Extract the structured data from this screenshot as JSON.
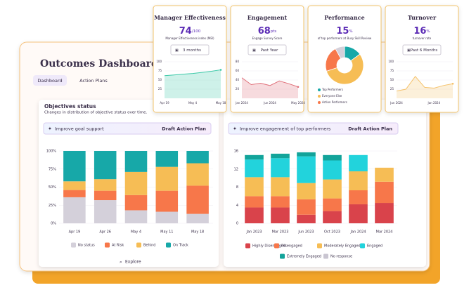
{
  "dashboard": {
    "title": "Outcomes Dashboard",
    "tabs": [
      "Dashboard",
      "Action Plans"
    ]
  },
  "panels": [
    {
      "title": "Objectives status",
      "subtitle": "Changes in distribution of objective status over time.",
      "banner": "Improve goal support",
      "action": "Draft Action Plan",
      "footer": "Explore",
      "chart": {
        "type": "stacked_bar",
        "categories": [
          "Apr 19",
          "Apr 26",
          "May 4",
          "May 11",
          "May 18"
        ],
        "series": [
          {
            "name": "No status",
            "color": "#d4d0da",
            "values": [
              36,
              32,
              18,
              16,
              13
            ]
          },
          {
            "name": "At Risk",
            "color": "#f7774a",
            "values": [
              10,
              13,
              21,
              29,
              39
            ]
          },
          {
            "name": "Behind",
            "color": "#f6bd55",
            "values": [
              12,
              16,
              32,
              33,
              31
            ]
          },
          {
            "name": "On Track",
            "color": "#17a8a8",
            "values": [
              42,
              39,
              29,
              22,
              17
            ]
          }
        ],
        "ylim": [
          0,
          100
        ],
        "yticks": [
          {
            "value": 0,
            "label": "0%"
          },
          {
            "value": 25,
            "label": "25%"
          },
          {
            "value": 50,
            "label": "50%"
          },
          {
            "value": 75,
            "label": "75%"
          },
          {
            "value": 100,
            "label": "100%"
          }
        ]
      }
    },
    {
      "banner": "Improve engagement of top performers",
      "action": "Draft Action Plan",
      "chart": {
        "type": "stacked_bar",
        "categories": [
          "Jan 2023",
          "Mar 2023",
          "Jun 2023",
          "Oct 2023",
          "Jan 2024",
          "Mar 2024"
        ],
        "series": [
          {
            "name": "Highly Disengaged",
            "color": "#d9434b",
            "values": [
              3.5,
              3.5,
              1.9,
              2.7,
              4.2,
              4.5
            ]
          },
          {
            "name": "Disengaged",
            "color": "#f7774a",
            "values": [
              2.5,
              2.5,
              3.4,
              2.8,
              3.1,
              4.7
            ]
          },
          {
            "name": "Moderately Engaged",
            "color": "#f6bd55",
            "values": [
              4.2,
              4.2,
              3.6,
              4.2,
              4.2,
              3.1
            ]
          },
          {
            "name": "Engaged",
            "color": "#22d3dc",
            "values": [
              3.9,
              4.2,
              5.9,
              4.2,
              3.6,
              0
            ]
          },
          {
            "name": "Extremely Engaged",
            "color": "#12a39a",
            "values": [
              1,
              1,
              0.9,
              1.2,
              0,
              0
            ]
          },
          {
            "name": "No response",
            "color": "#c9c5d1",
            "values": [
              0,
              0,
              0,
              0,
              0,
              0
            ]
          }
        ],
        "ylim": [
          0,
          16
        ],
        "yticks": [
          0,
          4,
          8,
          12,
          16
        ]
      }
    }
  ],
  "cards": [
    {
      "title": "Manager Effectiveness",
      "value": 74,
      "unit": "/100",
      "caption": "Manager Effectiveness index (MEI)",
      "period": "3 months",
      "chart": {
        "type": "area",
        "color": "#3cc9a8",
        "x": [
          "Apr 19",
          null,
          null,
          "May 4",
          null,
          null,
          "May 18"
        ],
        "values": [
          62,
          64,
          66,
          68,
          71,
          74,
          78
        ],
        "ylim": [
          0,
          100
        ],
        "yticks": [
          25,
          50,
          75,
          100
        ]
      }
    },
    {
      "title": "Engagement",
      "value": 68,
      "unit": "pts",
      "caption": "Engage Survey Score",
      "period": "Past Year",
      "chart": {
        "type": "area",
        "color": "#e0707a",
        "x": [
          "Jan 2024",
          null,
          null,
          "Jun 2024",
          null,
          null,
          "May 2024"
        ],
        "values": [
          45,
          30,
          33,
          28,
          38,
          32,
          25
        ],
        "ylim": [
          0,
          80
        ],
        "yticks": [
          20,
          40,
          60,
          80
        ]
      }
    },
    {
      "title": "Performance",
      "value": 15,
      "unit": "%",
      "caption": "of top performers at Busy Skill Review",
      "chart": {
        "type": "pie",
        "categories": [
          "Top Performers",
          "Everyone Else",
          "Action Performers",
          null
        ],
        "values": [
          15,
          55,
          22,
          8
        ],
        "colors": [
          "#17a8a8",
          "#f6bd55",
          "#f7774a",
          "#d4d0da"
        ]
      }
    },
    {
      "title": "Turnover",
      "value": 16,
      "unit": "%",
      "caption": "turnover rate",
      "period": "Past 6 Months",
      "chart": {
        "type": "area",
        "color": "#f5c26b",
        "x": [
          "Jun 2024",
          null,
          null,
          null,
          "Jan 2024",
          null,
          null
        ],
        "values": [
          20,
          25,
          60,
          30,
          28,
          35,
          40
        ],
        "ylim": [
          0,
          100
        ],
        "yticks": [
          25,
          50,
          75,
          100
        ]
      }
    }
  ]
}
